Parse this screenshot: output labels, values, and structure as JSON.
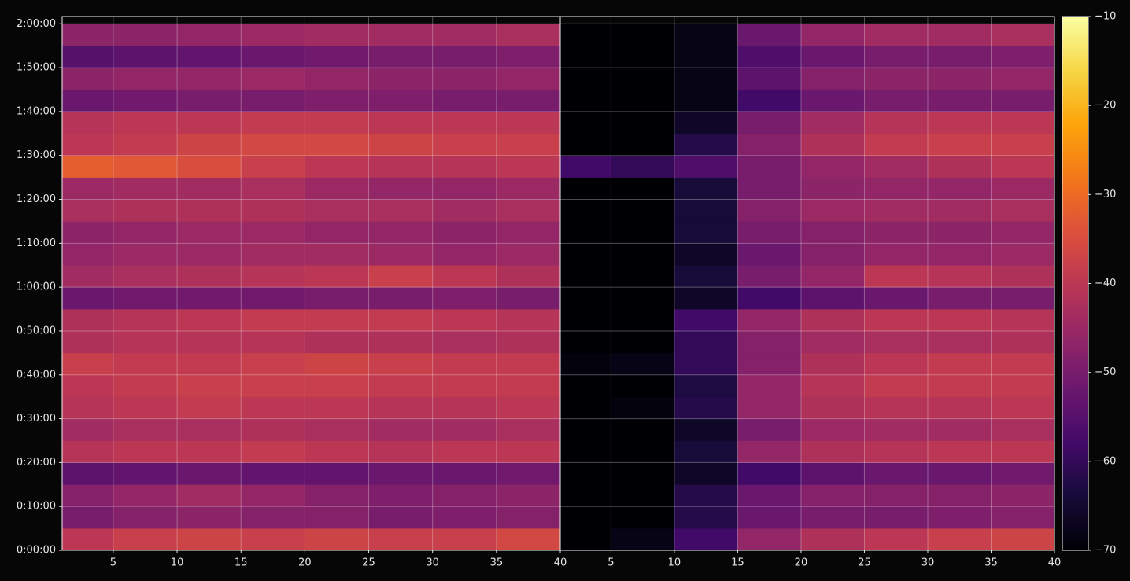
{
  "chart_data": {
    "type": "heatmap",
    "xlim": [
      1,
      40
    ],
    "xticks": [
      5,
      10,
      15,
      20,
      25,
      30,
      35,
      40
    ],
    "ylim": [
      0,
      7300
    ],
    "yticks": [
      {
        "value": 0,
        "label": "0:00:00"
      },
      {
        "value": 600,
        "label": "0:10:00"
      },
      {
        "value": 1200,
        "label": "0:20:00"
      },
      {
        "value": 1800,
        "label": "0:30:00"
      },
      {
        "value": 2400,
        "label": "0:40:00"
      },
      {
        "value": 3000,
        "label": "0:50:00"
      },
      {
        "value": 3600,
        "label": "1:00:00"
      },
      {
        "value": 4200,
        "label": "1:10:00"
      },
      {
        "value": 4800,
        "label": "1:20:00"
      },
      {
        "value": 5400,
        "label": "1:30:00"
      },
      {
        "value": 6000,
        "label": "1:40:00"
      },
      {
        "value": 6600,
        "label": "1:50:00"
      },
      {
        "value": 7200,
        "label": "2:00:00"
      }
    ],
    "grid": true,
    "x_edges": [
      1,
      5,
      10,
      15,
      20,
      25,
      30,
      35,
      40
    ],
    "y_edges": [
      0,
      300,
      600,
      900,
      1200,
      1500,
      1800,
      2100,
      2400,
      2700,
      3000,
      3300,
      3600,
      3900,
      4200,
      4500,
      4800,
      5100,
      5400,
      5700,
      6000,
      6300,
      6600,
      6900,
      7200
    ],
    "colorbar": {
      "lim": [
        -70,
        -10
      ],
      "colormap": "inferno",
      "ticks": [
        {
          "value": -70,
          "label": "−70"
        },
        {
          "value": -60,
          "label": "−60"
        },
        {
          "value": -50,
          "label": "−50"
        },
        {
          "value": -40,
          "label": "−40"
        },
        {
          "value": -30,
          "label": "−30"
        },
        {
          "value": -20,
          "label": "−20"
        },
        {
          "value": -10,
          "label": "−10"
        }
      ]
    },
    "panels": [
      {
        "z": [
          [
            -40,
            -38,
            -37,
            -38,
            -37,
            -38,
            -38,
            -36
          ],
          [
            -50,
            -48,
            -47,
            -48,
            -48,
            -50,
            -49,
            -48
          ],
          [
            -48,
            -46,
            -44,
            -46,
            -48,
            -49,
            -48,
            -47
          ],
          [
            -54,
            -53,
            -52,
            -53,
            -53,
            -52,
            -52,
            -51
          ],
          [
            -41,
            -40,
            -40,
            -39,
            -40,
            -41,
            -40,
            -40
          ],
          [
            -44,
            -43,
            -43,
            -42,
            -43,
            -44,
            -44,
            -43
          ],
          [
            -41,
            -40,
            -39,
            -40,
            -40,
            -41,
            -41,
            -40
          ],
          [
            -40,
            -39,
            -38,
            -38,
            -38,
            -39,
            -39,
            -39
          ],
          [
            -38,
            -39,
            -39,
            -38,
            -37,
            -38,
            -39,
            -39
          ],
          [
            -42,
            -41,
            -41,
            -41,
            -42,
            -42,
            -43,
            -42
          ],
          [
            -42,
            -41,
            -40,
            -39,
            -39,
            -39,
            -40,
            -41
          ],
          [
            -52,
            -51,
            -51,
            -51,
            -50,
            -50,
            -49,
            -50
          ],
          [
            -44,
            -43,
            -42,
            -41,
            -40,
            -38,
            -40,
            -42
          ],
          [
            -46,
            -45,
            -45,
            -44,
            -44,
            -45,
            -46,
            -45
          ],
          [
            -47,
            -46,
            -45,
            -45,
            -46,
            -46,
            -47,
            -46
          ],
          [
            -43,
            -42,
            -42,
            -42,
            -43,
            -43,
            -44,
            -43
          ],
          [
            -45,
            -44,
            -44,
            -43,
            -45,
            -46,
            -46,
            -45
          ],
          [
            -32,
            -33,
            -35,
            -38,
            -40,
            -41,
            -41,
            -40
          ],
          [
            -40,
            -39,
            -37,
            -36,
            -36,
            -37,
            -38,
            -38
          ],
          [
            -41,
            -40,
            -40,
            -39,
            -39,
            -40,
            -40,
            -40
          ],
          [
            -52,
            -51,
            -50,
            -50,
            -49,
            -49,
            -50,
            -50
          ],
          [
            -47,
            -46,
            -46,
            -45,
            -46,
            -47,
            -47,
            -46
          ],
          [
            -55,
            -54,
            -53,
            -52,
            -51,
            -50,
            -50,
            -49
          ],
          [
            -47,
            -47,
            -46,
            -45,
            -44,
            -44,
            -44,
            -43
          ]
        ]
      },
      {
        "z": [
          [
            -70,
            -68,
            -58,
            -46,
            -42,
            -40,
            -38,
            -37
          ],
          [
            -70,
            -70,
            -62,
            -52,
            -50,
            -50,
            -49,
            -48
          ],
          [
            -70,
            -70,
            -62,
            -52,
            -48,
            -48,
            -48,
            -47
          ],
          [
            -70,
            -70,
            -66,
            -58,
            -54,
            -52,
            -52,
            -51
          ],
          [
            -70,
            -70,
            -64,
            -46,
            -42,
            -41,
            -40,
            -40
          ],
          [
            -70,
            -70,
            -66,
            -50,
            -45,
            -44,
            -44,
            -43
          ],
          [
            -70,
            -69,
            -62,
            -46,
            -42,
            -41,
            -41,
            -40
          ],
          [
            -70,
            -70,
            -63,
            -46,
            -41,
            -39,
            -39,
            -39
          ],
          [
            -69,
            -68,
            -60,
            -48,
            -42,
            -40,
            -39,
            -39
          ],
          [
            -70,
            -70,
            -60,
            -48,
            -44,
            -43,
            -43,
            -42
          ],
          [
            -70,
            -70,
            -58,
            -46,
            -42,
            -40,
            -40,
            -41
          ],
          [
            -70,
            -70,
            -66,
            -58,
            -54,
            -52,
            -50,
            -50
          ],
          [
            -70,
            -70,
            -64,
            -50,
            -46,
            -40,
            -41,
            -42
          ],
          [
            -70,
            -70,
            -66,
            -52,
            -48,
            -46,
            -46,
            -45
          ],
          [
            -70,
            -70,
            -64,
            -50,
            -48,
            -47,
            -47,
            -46
          ],
          [
            -70,
            -70,
            -64,
            -48,
            -45,
            -44,
            -44,
            -43
          ],
          [
            -70,
            -70,
            -64,
            -50,
            -47,
            -46,
            -46,
            -45
          ],
          [
            -58,
            -60,
            -56,
            -50,
            -46,
            -44,
            -42,
            -40
          ],
          [
            -70,
            -70,
            -62,
            -48,
            -42,
            -39,
            -38,
            -38
          ],
          [
            -70,
            -70,
            -66,
            -50,
            -44,
            -41,
            -40,
            -40
          ],
          [
            -70,
            -70,
            -68,
            -58,
            -52,
            -50,
            -50,
            -50
          ],
          [
            -70,
            -70,
            -68,
            -54,
            -48,
            -47,
            -47,
            -46
          ],
          [
            -70,
            -70,
            -68,
            -56,
            -52,
            -50,
            -50,
            -49
          ],
          [
            -70,
            -70,
            -68,
            -52,
            -46,
            -44,
            -44,
            -43
          ]
        ]
      }
    ]
  }
}
